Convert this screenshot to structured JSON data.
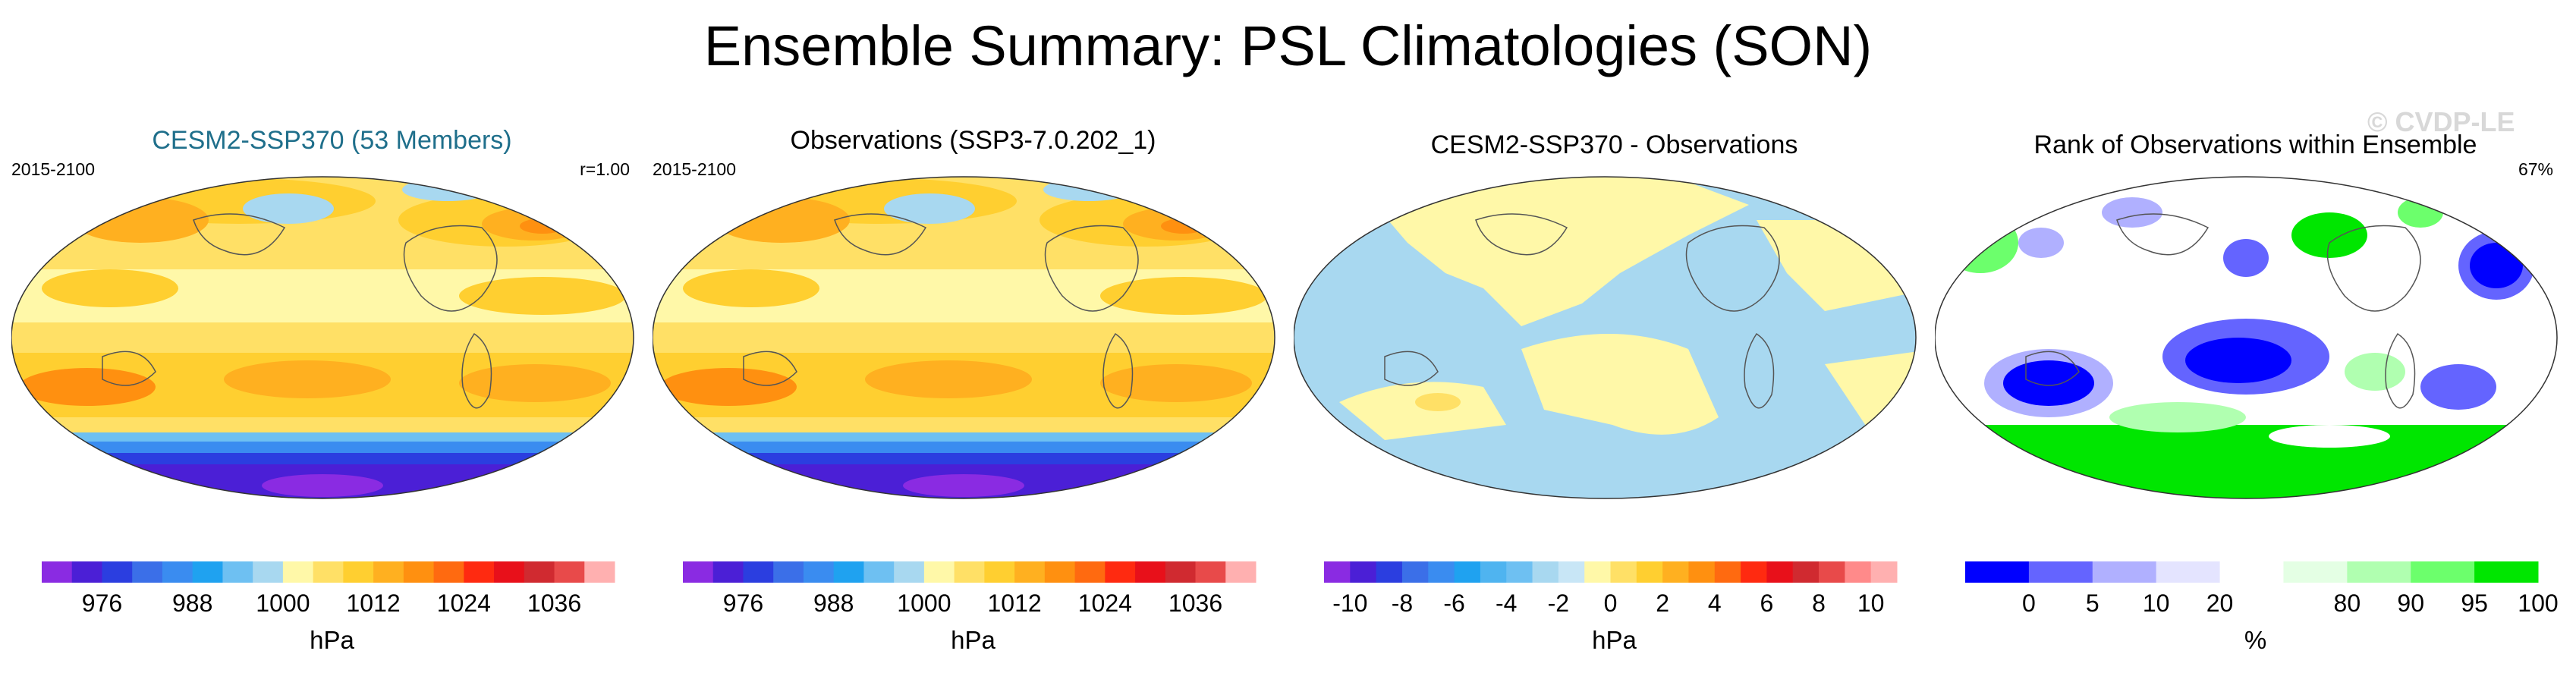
{
  "title": "Ensemble Summary: PSL Climatologies (SON)",
  "watermark": "© CVDP-LE",
  "chart_data": [
    {
      "type": "heatmap",
      "title": "CESM2-SSP370 (53 Members)",
      "left_label": "2015-2100",
      "right_label": "r=1.00",
      "colorbar_label": "hPa",
      "tick_labels": [
        "976",
        "988",
        "1000",
        "1012",
        "1024",
        "1036"
      ],
      "tick_positions": [
        2,
        5,
        8,
        11,
        14,
        17
      ]
    },
    {
      "type": "heatmap",
      "title": "Observations (SSP3-7.0.202_1)",
      "left_label": "2015-2100",
      "colorbar_label": "hPa",
      "tick_labels": [
        "976",
        "988",
        "1000",
        "1012",
        "1024",
        "1036"
      ],
      "tick_positions": [
        2,
        5,
        8,
        11,
        14,
        17
      ]
    },
    {
      "type": "heatmap",
      "title": "CESM2-SSP370 - Observations",
      "colorbar_label": "hPa",
      "tick_labels": [
        "-10",
        "-8",
        "-6",
        "-4",
        "-2",
        "0",
        "2",
        "4",
        "6",
        "8",
        "10"
      ],
      "tick_positions": [
        1,
        3,
        5,
        7,
        9,
        11,
        13,
        15,
        17,
        19,
        21
      ]
    },
    {
      "type": "heatmap",
      "title": "Rank of Observations within Ensemble",
      "right_label": "67%",
      "colorbar_label": "%",
      "tick_labels": [
        "0",
        "5",
        "10",
        "20",
        "80",
        "90",
        "95",
        "100"
      ],
      "tick_positions": [
        1,
        2,
        3,
        4,
        6,
        7,
        8,
        9
      ]
    }
  ],
  "colors": {
    "psl_scale": [
      "#8a2be2",
      "#4b1fd6",
      "#2b3ee0",
      "#3b6fe8",
      "#3a8cf0",
      "#1fa2f0",
      "#6ec0f2",
      "#a8d8f0",
      "#fff8a8",
      "#ffe066",
      "#ffcf30",
      "#ffb020",
      "#ff9010",
      "#ff6a10",
      "#ff2a10",
      "#e8101a",
      "#d02a30",
      "#e84a4a",
      "#ffb0b0"
    ],
    "rank_scale": [
      "#0000ff",
      "#6464ff",
      "#b0b0ff",
      "#e4e4ff",
      "#ffffff",
      "#e4ffe4",
      "#b0ffb0",
      "#6cff6c",
      "#00e600"
    ]
  }
}
